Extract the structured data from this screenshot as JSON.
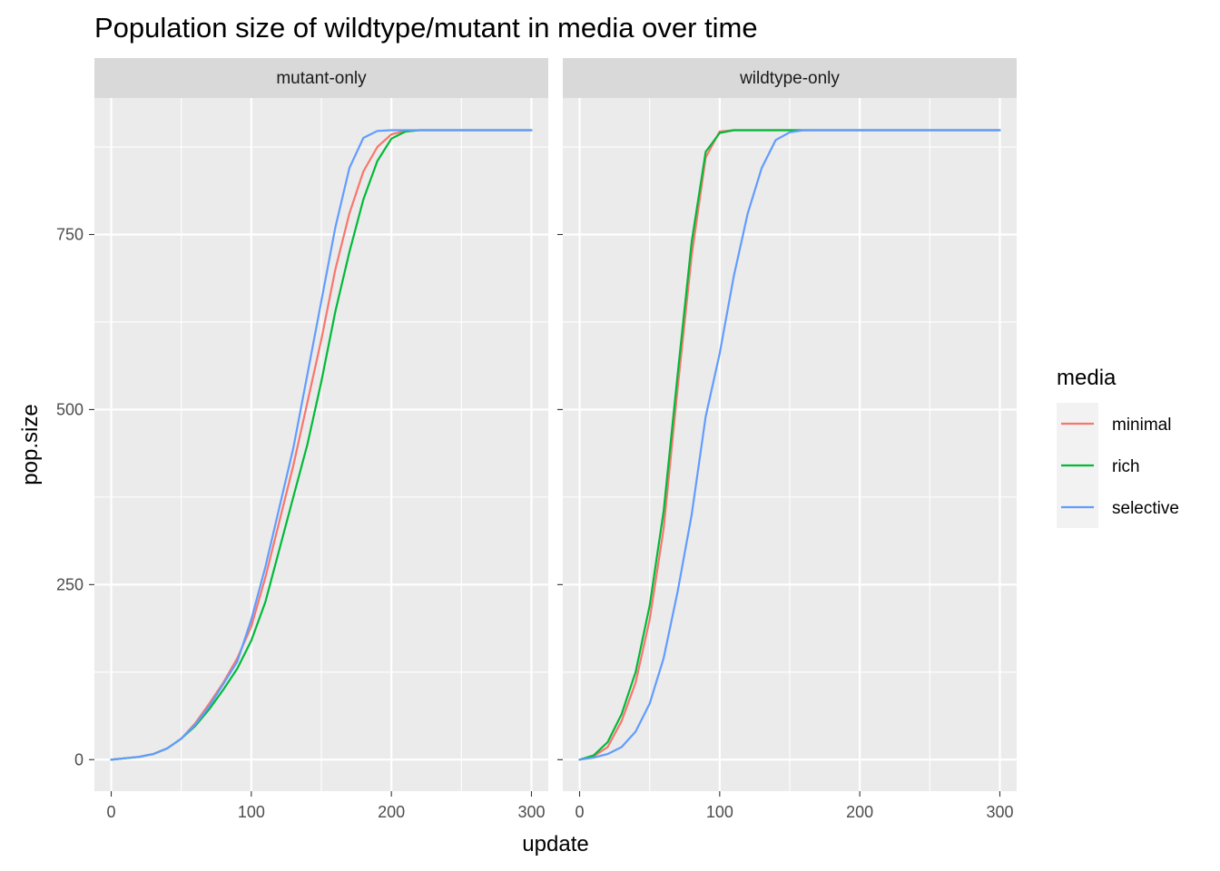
{
  "chart_data": {
    "type": "line",
    "title": "Population size of wildtype/mutant in media over time",
    "xlabel": "update",
    "ylabel": "pop.size",
    "xlim": [
      -12,
      312
    ],
    "ylim": [
      -45,
      945
    ],
    "x_ticks": [
      0,
      100,
      200,
      300
    ],
    "x_tick_labels": [
      "0",
      "100",
      "200",
      "300"
    ],
    "y_ticks": [
      0,
      250,
      500,
      750
    ],
    "y_tick_labels": [
      "0",
      "250",
      "500",
      "750"
    ],
    "grid": true,
    "legend": {
      "title": "media",
      "placement": "right",
      "entries": [
        "minimal",
        "rich",
        "selective"
      ]
    },
    "colors": {
      "minimal": "#F8766D",
      "rich": "#00BA38",
      "selective": "#619CFF"
    },
    "panels": [
      {
        "label": "mutant-only",
        "series": [
          {
            "name": "minimal",
            "x": [
              0,
              10,
              20,
              30,
              40,
              50,
              60,
              70,
              80,
              90,
              100,
              110,
              120,
              130,
              140,
              150,
              160,
              170,
              180,
              190,
              200,
              210,
              220,
              300
            ],
            "y": [
              0,
              2,
              4,
              8,
              16,
              30,
              52,
              80,
              110,
              145,
              190,
              260,
              340,
              420,
              510,
              600,
              700,
              780,
              840,
              875,
              893,
              898,
              899,
              899
            ]
          },
          {
            "name": "rich",
            "x": [
              0,
              10,
              20,
              30,
              40,
              50,
              60,
              70,
              80,
              90,
              100,
              110,
              120,
              130,
              140,
              150,
              160,
              170,
              180,
              190,
              200,
              210,
              220,
              300
            ],
            "y": [
              0,
              2,
              4,
              8,
              16,
              30,
              48,
              72,
              100,
              130,
              170,
              225,
              300,
              375,
              450,
              540,
              640,
              725,
              800,
              855,
              887,
              897,
              899,
              899
            ]
          },
          {
            "name": "selective",
            "x": [
              0,
              10,
              20,
              30,
              40,
              50,
              60,
              70,
              80,
              90,
              100,
              110,
              120,
              130,
              140,
              150,
              160,
              170,
              180,
              190,
              200,
              210,
              220,
              300
            ],
            "y": [
              0,
              2,
              4,
              8,
              16,
              30,
              50,
              76,
              108,
              140,
              200,
              275,
              360,
              445,
              550,
              655,
              760,
              845,
              888,
              898,
              899,
              899,
              899,
              899
            ]
          }
        ]
      },
      {
        "label": "wildtype-only",
        "series": [
          {
            "name": "minimal",
            "x": [
              0,
              10,
              20,
              30,
              40,
              50,
              60,
              70,
              80,
              90,
              100,
              110,
              160,
              300
            ],
            "y": [
              0,
              5,
              18,
              55,
              110,
              200,
              330,
              530,
              720,
              860,
              897,
              899,
              899,
              899
            ]
          },
          {
            "name": "rich",
            "x": [
              0,
              10,
              20,
              30,
              40,
              50,
              60,
              70,
              80,
              90,
              100,
              110,
              160,
              300
            ],
            "y": [
              0,
              6,
              25,
              65,
              125,
              220,
              355,
              550,
              740,
              868,
              895,
              899,
              899,
              899
            ]
          },
          {
            "name": "selective",
            "x": [
              0,
              10,
              20,
              30,
              40,
              50,
              60,
              70,
              80,
              90,
              100,
              110,
              120,
              130,
              140,
              150,
              160,
              180,
              300
            ],
            "y": [
              0,
              3,
              8,
              18,
              40,
              80,
              145,
              240,
              350,
              490,
              580,
              690,
              780,
              845,
              885,
              896,
              899,
              899,
              899
            ]
          }
        ]
      }
    ]
  }
}
